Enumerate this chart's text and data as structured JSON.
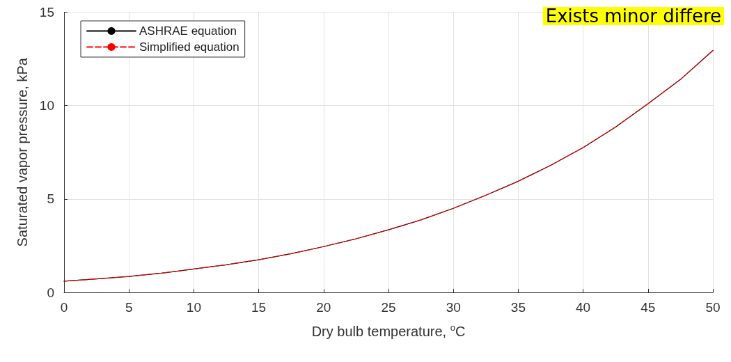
{
  "chart_data": {
    "type": "line",
    "x": [
      0,
      2.5,
      5,
      7.5,
      10,
      12.5,
      15,
      17.5,
      20,
      22.5,
      25,
      27.5,
      30,
      32.5,
      35,
      37.5,
      40,
      42.5,
      45,
      47.5,
      50
    ],
    "series": [
      {
        "name": "ASHRAE equation",
        "color": "#000000",
        "line_style": "solid",
        "values": [
          0.6,
          0.72,
          0.85,
          1.03,
          1.25,
          1.48,
          1.75,
          2.07,
          2.45,
          2.87,
          3.35,
          3.88,
          4.5,
          5.2,
          5.95,
          6.8,
          7.75,
          8.85,
          10.1,
          11.4,
          12.95
        ]
      },
      {
        "name": "Simplified equation",
        "color": "#ff0000",
        "line_style": "dashed",
        "values": [
          0.6,
          0.72,
          0.85,
          1.03,
          1.25,
          1.48,
          1.75,
          2.07,
          2.45,
          2.87,
          3.35,
          3.88,
          4.5,
          5.2,
          5.95,
          6.8,
          7.75,
          8.85,
          10.1,
          11.4,
          12.95
        ]
      }
    ],
    "xlabel": "Dry bulb temperature, $^{o}$C",
    "ylabel": "Saturated vapor pressure, kPa",
    "xlim": [
      0,
      50
    ],
    "xticks": [
      0,
      5,
      10,
      15,
      20,
      25,
      30,
      35,
      40,
      45,
      50
    ],
    "ylim": [
      0,
      15
    ],
    "yticks": [
      0,
      5,
      10,
      15
    ],
    "grid": true,
    "legend": "top left",
    "marker": "none",
    "annotations": [
      "Exists minor differe"
    ]
  }
}
